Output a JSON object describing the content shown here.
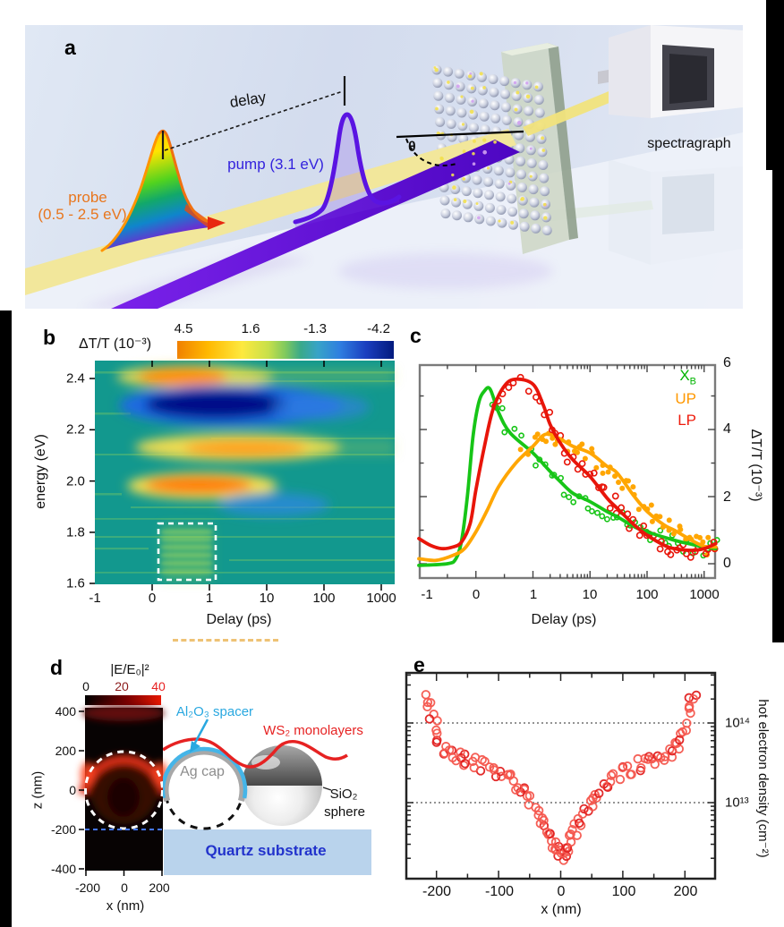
{
  "panel_a": {
    "label": "a",
    "probe_label": "probe",
    "probe_range": "(0.5 - 2.5 eV)",
    "pump_label": "pump (3.1 eV)",
    "delay_label": "delay",
    "theta_symbol": "θ",
    "spectrograph_label": "spectragraph"
  },
  "panel_b": {
    "label": "b",
    "colorbar_title": "ΔT/T (10⁻³)",
    "cticks": [
      "4.5",
      "1.6",
      "-1.3",
      "-4.2"
    ],
    "ylabel": "energy (eV)",
    "yticks": [
      "2.4",
      "2.2",
      "2.0",
      "1.8",
      "1.6"
    ],
    "xlabel": "Delay (ps)",
    "xticks": [
      "-1",
      "0",
      "1",
      "10",
      "100",
      "1000"
    ]
  },
  "panel_c": {
    "label": "c",
    "legend": {
      "xb_main": "X",
      "xb_sub": "B",
      "up": "UP",
      "lp": "LP"
    },
    "ylabel": "ΔT/T (10⁻³)",
    "yticks": [
      "6",
      "4",
      "2",
      "0"
    ],
    "xlabel": "Delay (ps)",
    "xticks": [
      "-1",
      "0",
      "1",
      "10",
      "100",
      "1000"
    ]
  },
  "panel_d": {
    "label": "d",
    "colorbar_title": "|E/E₀|²",
    "cticks": [
      "0",
      "20",
      "40"
    ],
    "zlabel": "z (nm)",
    "zticks": [
      "400",
      "200",
      "0",
      "-200",
      "-400"
    ],
    "xlabel": "x (nm)",
    "xticks": [
      "-200",
      "0",
      "200"
    ],
    "al2o3_label": "Al₂O₃ spacer",
    "ws2_label": "WS₂ monolayers",
    "ag_label": "Ag cap",
    "sio2_line1": "SiO₂",
    "sio2_line2": "sphere",
    "quartz_label": "Quartz substrate"
  },
  "panel_e": {
    "label": "e",
    "xlabel": "x (nm)",
    "xticks": [
      "-200",
      "-100",
      "0",
      "100",
      "200"
    ],
    "yticks": [
      "10¹⁴",
      "10¹³"
    ],
    "ylabel": "hot electron density (cm⁻²)"
  },
  "chart_data": [
    {
      "id": "b",
      "type": "heatmap",
      "title": "ΔT/T (10⁻³)",
      "xlabel": "Delay (ps)",
      "ylabel": "energy (eV)",
      "x_ticks": [
        -1,
        0,
        1,
        10,
        100,
        1000
      ],
      "x_scale": "linear below 1 ps, log above",
      "y_range_eV": [
        1.6,
        2.47
      ],
      "colorbar_ticks": [
        4.5,
        1.6,
        -1.3,
        -4.2
      ],
      "features": [
        {
          "energy_eV": 2.42,
          "delay_ps": [
            0,
            3
          ],
          "sign": "positive",
          "approx_peak": 3.5
        },
        {
          "energy_eV": 2.3,
          "delay_ps": [
            0,
            200
          ],
          "sign": "negative",
          "approx_peak": -4.2
        },
        {
          "energy_eV": 2.12,
          "delay_ps": [
            0,
            60
          ],
          "sign": "positive",
          "approx_peak": 3.0
        },
        {
          "energy_eV": 2.0,
          "delay_ps": [
            0,
            30
          ],
          "sign": "positive",
          "approx_peak": 4.5
        },
        {
          "energy_eV": 1.93,
          "delay_ps": [
            3,
            100
          ],
          "sign": "negative",
          "approx_peak": -2.0
        },
        {
          "energy_eV": [
            1.6,
            1.83
          ],
          "delay_ps": [
            0.2,
            1.3
          ],
          "note": "white dashed box, weak positive streaks"
        }
      ]
    },
    {
      "id": "c",
      "type": "line",
      "xlabel": "Delay (ps)",
      "ylabel": "ΔT/T (10⁻³)",
      "x_ticks": [
        -1,
        0,
        1,
        10,
        100,
        1000
      ],
      "ylim": [
        -0.5,
        6
      ],
      "legend_position": "top-right",
      "series": [
        {
          "name": "XB",
          "color": "#17c517",
          "marker": "open",
          "scatter_from": 0.3,
          "scatter_n": 46,
          "marker_r": 2.6,
          "points": [
            [
              -1,
              -0.05
            ],
            [
              -0.5,
              0
            ],
            [
              -0.35,
              0.15
            ],
            [
              -0.25,
              0.7
            ],
            [
              -0.15,
              2
            ],
            [
              -0.05,
              3.8
            ],
            [
              0.05,
              4.8
            ],
            [
              0.15,
              5.15
            ],
            [
              0.25,
              5.2
            ],
            [
              0.4,
              4.5
            ],
            [
              0.6,
              3.9
            ],
            [
              1,
              3.3
            ],
            [
              2,
              2.75
            ],
            [
              3,
              2.45
            ],
            [
              5,
              2.1
            ],
            [
              10,
              1.85
            ],
            [
              20,
              1.55
            ],
            [
              30,
              1.4
            ],
            [
              60,
              1.1
            ],
            [
              100,
              0.95
            ],
            [
              300,
              0.7
            ],
            [
              600,
              0.58
            ],
            [
              1000,
              0.5
            ],
            [
              1600,
              0.45
            ]
          ]
        },
        {
          "name": "UP",
          "color": "#ffa602",
          "marker": "filled",
          "scatter_from": 0.8,
          "scatter_n": 55,
          "marker_r": 3,
          "points": [
            [
              -1,
              0.15
            ],
            [
              -0.7,
              0.1
            ],
            [
              -0.4,
              0.25
            ],
            [
              -0.2,
              0.45
            ],
            [
              0,
              0.95
            ],
            [
              0.2,
              1.6
            ],
            [
              0.4,
              2.3
            ],
            [
              0.7,
              3
            ],
            [
              1,
              3.5
            ],
            [
              1.5,
              3.82
            ],
            [
              2,
              3.85
            ],
            [
              3,
              3.72
            ],
            [
              5,
              3.5
            ],
            [
              10,
              3.3
            ],
            [
              20,
              2.9
            ],
            [
              30,
              2.7
            ],
            [
              60,
              2
            ],
            [
              100,
              1.56
            ],
            [
              200,
              1.15
            ],
            [
              300,
              1
            ],
            [
              600,
              0.7
            ],
            [
              1000,
              0.52
            ],
            [
              1600,
              0.5
            ]
          ]
        },
        {
          "name": "LP",
          "color": "#e8150a",
          "marker": "open",
          "scatter_from": 0.35,
          "scatter_n": 52,
          "marker_r": 3.1,
          "points": [
            [
              -1,
              0.75
            ],
            [
              -0.8,
              0.55
            ],
            [
              -0.6,
              0.45
            ],
            [
              -0.4,
              0.5
            ],
            [
              -0.25,
              0.65
            ],
            [
              -0.1,
              1.2
            ],
            [
              0,
              2.2
            ],
            [
              0.15,
              3.5
            ],
            [
              0.3,
              4.6
            ],
            [
              0.5,
              5.3
            ],
            [
              0.7,
              5.5
            ],
            [
              1,
              5.35
            ],
            [
              1.5,
              4.75
            ],
            [
              2,
              4.15
            ],
            [
              3,
              3.6
            ],
            [
              5,
              3.1
            ],
            [
              10,
              2.6
            ],
            [
              20,
              1.95
            ],
            [
              30,
              1.65
            ],
            [
              60,
              1.15
            ],
            [
              100,
              0.85
            ],
            [
              200,
              0.55
            ],
            [
              300,
              0.45
            ],
            [
              600,
              0.4
            ],
            [
              1000,
              0.45
            ],
            [
              1600,
              0.6
            ]
          ]
        }
      ]
    },
    {
      "id": "d_map",
      "type": "heatmap",
      "title": "|E/E₀|²",
      "colorbar_ticks": [
        0,
        20,
        40
      ],
      "xlabel": "x (nm)",
      "ylabel": "z (nm)",
      "x_ticks": [
        -200,
        0,
        200
      ],
      "z_ticks": [
        400,
        200,
        0,
        -200,
        -400
      ],
      "features": [
        {
          "note": "field enhancement concentrated in red arc at top of sphere, z ≈ 200 nm"
        },
        {
          "note": "dashed white circle: sphere outline, radius ≈ 210 nm, center z = 0"
        },
        {
          "note": "blue dashed line: substrate surface at z ≈ -210 nm"
        }
      ]
    },
    {
      "id": "e",
      "type": "scatter",
      "xlabel": "x (nm)",
      "ylabel": "hot electron density (cm⁻²)",
      "yscale": "log",
      "xlim": [
        -250,
        250
      ],
      "ylim": [
        1100000000000.0,
        440000000000000.0
      ],
      "gridlines": [
        100000000000000.0,
        10000000000000.0
      ],
      "symmetric": true,
      "points": [
        [
          0,
          2200000000000.0
        ],
        [
          5,
          2400000000000.0
        ],
        [
          10,
          2900000000000.0
        ],
        [
          16,
          3600000000000.0
        ],
        [
          22,
          4600000000000.0
        ],
        [
          30,
          6000000000000.0
        ],
        [
          40,
          8000000000000.0
        ],
        [
          50,
          10500000000000.0
        ],
        [
          60,
          13000000000000.0
        ],
        [
          72,
          16000000000000.0
        ],
        [
          85,
          20000000000000.0
        ],
        [
          100,
          23500000000000.0
        ],
        [
          112,
          27000000000000.0
        ],
        [
          125,
          30000000000000.0
        ],
        [
          138,
          32000000000000.0
        ],
        [
          152,
          34500000000000.0
        ],
        [
          165,
          37000000000000.0
        ],
        [
          178,
          41000000000000.0
        ],
        [
          188,
          49000000000000.0
        ],
        [
          196,
          65000000000000.0
        ],
        [
          202,
          90000000000000.0
        ],
        [
          207,
          130000000000000.0
        ],
        [
          211,
          180000000000000.0
        ],
        [
          214,
          210000000000000.0
        ]
      ]
    }
  ]
}
